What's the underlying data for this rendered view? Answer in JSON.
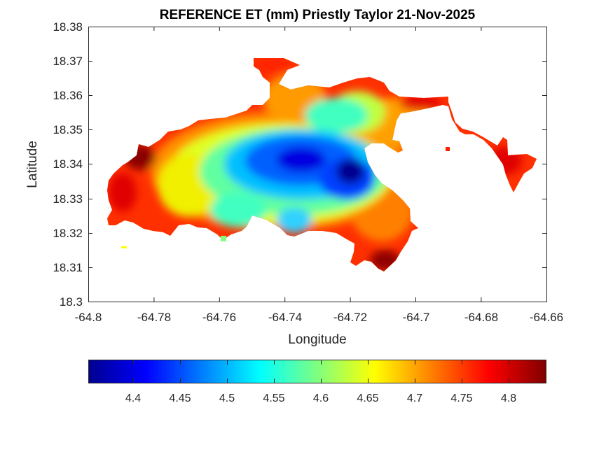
{
  "title": "REFERENCE ET (mm) Priestly Taylor 21-Nov-2025",
  "xlabel": "Longitude",
  "ylabel": "Latitude",
  "x_ticks": [
    "-64.8",
    "-64.78",
    "-64.76",
    "-64.74",
    "-64.72",
    "-64.7",
    "-64.68",
    "-64.66"
  ],
  "y_ticks": [
    "18.38",
    "18.37",
    "18.36",
    "18.35",
    "18.34",
    "18.33",
    "18.32",
    "18.31",
    "18.3"
  ],
  "colorbar": {
    "colormap": "jet",
    "ticks": [
      "4.4",
      "4.45",
      "4.5",
      "4.55",
      "4.6",
      "4.65",
      "4.7",
      "4.75",
      "4.8"
    ],
    "range": [
      4.35,
      4.84
    ]
  },
  "chart_data": {
    "type": "heatmap",
    "title": "REFERENCE ET (mm) Priestly Taylor 21-Nov-2025",
    "xlabel": "Longitude",
    "ylabel": "Latitude",
    "xlim": [
      -64.8,
      -64.66
    ],
    "ylim": [
      18.3,
      18.38
    ],
    "color_range": [
      4.35,
      4.84
    ],
    "colormap": "jet",
    "pattern": "Interior of island lowest ET (~4.35-4.5 mm) centered near lon -64.72 to -64.74, lat 18.335-18.34; coastal edges highest (~4.75-4.84 mm), especially west end near -64.785, 18.34 and south tip near -64.71, 18.31."
  }
}
